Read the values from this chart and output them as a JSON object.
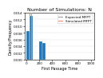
{
  "title": "Number of Simulations: N",
  "xlabel": "First Passage Time",
  "ylabel": "Density/Frequency",
  "bar_color": "#1f77b4",
  "background_color": "#ffffff",
  "plot_bg_color": "#ffffff",
  "xlim": [
    -25,
    1050
  ],
  "ylim": [
    0,
    0.014
  ],
  "bar_edges": [
    0,
    50,
    100,
    150,
    200,
    250,
    300,
    350,
    400,
    450,
    500,
    550,
    600,
    650,
    700,
    750,
    800,
    850,
    900,
    950,
    1000
  ],
  "bar_heights": [
    0.0085,
    0.013,
    0.0,
    0.0,
    0.0055,
    0.005,
    0.0,
    0.0,
    0.0,
    0.0,
    0.0,
    0.0,
    0.0,
    0.0,
    0.0,
    0.0,
    0.0,
    0.0,
    0.0,
    0.0
  ],
  "legend_expected_color": "#999999",
  "legend_simulated_color": "#fa8072",
  "yticks": [
    0.0,
    0.002,
    0.004,
    0.006,
    0.008,
    0.01,
    0.012,
    0.014
  ],
  "xticks": [
    0,
    200,
    400,
    600,
    800,
    1000
  ],
  "title_fontsize": 4.5,
  "label_fontsize": 3.5,
  "tick_fontsize": 3.0,
  "legend_fontsize": 3.0,
  "vline_expected": 55,
  "vline_simulated": 70
}
